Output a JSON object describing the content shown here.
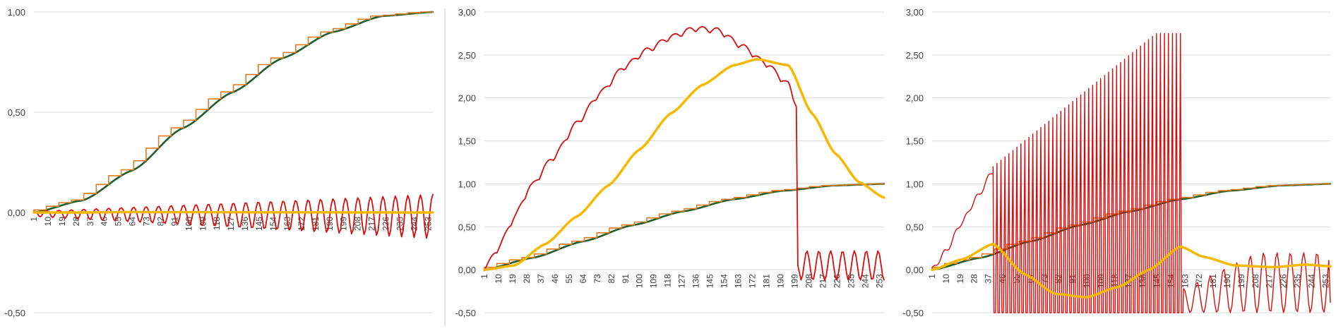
{
  "colors": {
    "green": "#1e5e2a",
    "orange": "#e07b1f",
    "red": "#d80e0e",
    "yellow": "#f7b800",
    "grid": "#d9d9d9",
    "divider": "#c8c8c8",
    "text": "#404040"
  },
  "chart_data": [
    {
      "type": "line",
      "ylim": [
        -0.5,
        1.0
      ],
      "yticks": [
        "1,00",
        "0,50",
        "0,00",
        "-0,50"
      ],
      "xtick_labels": [
        "1",
        "10",
        "19",
        "28",
        "37",
        "46",
        "55",
        "64",
        "73",
        "82",
        "91",
        "100",
        "109",
        "118",
        "127",
        "136",
        "145",
        "154",
        "163",
        "172",
        "181",
        "190",
        "199",
        "208",
        "217",
        "226",
        "235",
        "244",
        "253"
      ],
      "n_points": 256,
      "grid": true,
      "series": [
        {
          "color_key": "green",
          "desc": "smooth S-curve",
          "points": [
            [
              1,
              0
            ],
            [
              32,
              0.06
            ],
            [
              64,
              0.21
            ],
            [
              96,
              0.42
            ],
            [
              128,
              0.6
            ],
            [
              160,
              0.77
            ],
            [
              192,
              0.9
            ],
            [
              224,
              0.98
            ],
            [
              256,
              1.0
            ]
          ]
        },
        {
          "color_key": "orange",
          "desc": "staircase of smooth S-curve",
          "steps": 32,
          "points": [
            [
              1,
              0
            ],
            [
              32,
              0.06
            ],
            [
              64,
              0.21
            ],
            [
              96,
              0.42
            ],
            [
              128,
              0.6
            ],
            [
              160,
              0.77
            ],
            [
              192,
              0.9
            ],
            [
              224,
              0.98
            ],
            [
              256,
              1.0
            ]
          ]
        },
        {
          "color_key": "red",
          "desc": "oscillation",
          "cycles": 32,
          "min_amp_start": -0.02,
          "min_amp_end": -0.13,
          "max_amp_start": 0.005,
          "max_amp_end": 0.09
        },
        {
          "color_key": "yellow",
          "desc": "flat near zero",
          "points": [
            [
              1,
              0
            ],
            [
              30,
              0.0
            ],
            [
              60,
              0.002
            ],
            [
              256,
              0.0
            ]
          ]
        }
      ]
    },
    {
      "type": "line",
      "ylim": [
        -0.5,
        3.0
      ],
      "yticks": [
        "3,00",
        "2,50",
        "2,00",
        "1,50",
        "1,00",
        "0,50",
        "0,00",
        "-0,50"
      ],
      "xtick_labels": [
        "1",
        "10",
        "19",
        "28",
        "37",
        "46",
        "55",
        "64",
        "73",
        "82",
        "91",
        "100",
        "109",
        "118",
        "127",
        "136",
        "145",
        "154",
        "163",
        "172",
        "181",
        "190",
        "199",
        "208",
        "217",
        "226",
        "235",
        "244",
        "253"
      ],
      "n_points": 256,
      "grid": true,
      "series": [
        {
          "color_key": "green",
          "desc": "smooth S-curve",
          "points": [
            [
              1,
              0
            ],
            [
              32,
              0.14
            ],
            [
              64,
              0.33
            ],
            [
              96,
              0.52
            ],
            [
              128,
              0.68
            ],
            [
              160,
              0.82
            ],
            [
              192,
              0.92
            ],
            [
              224,
              0.98
            ],
            [
              256,
              1.0
            ]
          ]
        },
        {
          "color_key": "orange",
          "desc": "staircase of smooth S-curve",
          "steps": 32,
          "points": [
            [
              1,
              0
            ],
            [
              32,
              0.14
            ],
            [
              64,
              0.33
            ],
            [
              96,
              0.52
            ],
            [
              128,
              0.68
            ],
            [
              160,
              0.82
            ],
            [
              192,
              0.92
            ],
            [
              224,
              0.98
            ],
            [
              256,
              1.0
            ]
          ]
        },
        {
          "color_key": "red",
          "desc": "rising scalloped curve then drop and oscillation",
          "points": [
            [
              1,
              0
            ],
            [
              10,
              0.25
            ],
            [
              20,
              0.6
            ],
            [
              30,
              0.95
            ],
            [
              45,
              1.3
            ],
            [
              60,
              1.7
            ],
            [
              75,
              2.05
            ],
            [
              90,
              2.35
            ],
            [
              105,
              2.55
            ],
            [
              120,
              2.7
            ],
            [
              135,
              2.8
            ],
            [
              150,
              2.78
            ],
            [
              165,
              2.6
            ],
            [
              180,
              2.4
            ],
            [
              195,
              2.15
            ],
            [
              200,
              1.9
            ],
            [
              201,
              0.05
            ]
          ],
          "bumps": 22,
          "bump_amp": 0.07,
          "tail": {
            "start": 203,
            "end": 256,
            "cycles": 7,
            "min": -0.12,
            "max": 0.22,
            "end_value": -0.12
          }
        },
        {
          "color_key": "yellow",
          "desc": "bell-like curve",
          "points": [
            [
              1,
              0
            ],
            [
              20,
              0.05
            ],
            [
              40,
              0.3
            ],
            [
              60,
              0.62
            ],
            [
              80,
              0.98
            ],
            [
              100,
              1.4
            ],
            [
              120,
              1.82
            ],
            [
              140,
              2.15
            ],
            [
              160,
              2.38
            ],
            [
              175,
              2.45
            ],
            [
              195,
              2.38
            ],
            [
              210,
              1.82
            ],
            [
              225,
              1.35
            ],
            [
              240,
              1.02
            ],
            [
              256,
              0.84
            ]
          ]
        }
      ]
    },
    {
      "type": "line",
      "ylim": [
        -0.5,
        3.0
      ],
      "yticks": [
        "3,00",
        "2,50",
        "2,00",
        "1,50",
        "1,00",
        "0,50",
        "0,00",
        "-0,50"
      ],
      "xtick_labels": [
        "1",
        "10",
        "19",
        "28",
        "37",
        "46",
        "55",
        "64",
        "73",
        "82",
        "91",
        "100",
        "109",
        "118",
        "127",
        "136",
        "145",
        "154",
        "163",
        "172",
        "181",
        "190",
        "199",
        "208",
        "217",
        "226",
        "235",
        "244",
        "253"
      ],
      "n_points": 256,
      "grid": true,
      "series": [
        {
          "color_key": "green",
          "desc": "smooth S-curve",
          "points": [
            [
              1,
              0
            ],
            [
              32,
              0.14
            ],
            [
              64,
              0.33
            ],
            [
              96,
              0.52
            ],
            [
              128,
              0.68
            ],
            [
              160,
              0.82
            ],
            [
              192,
              0.92
            ],
            [
              224,
              0.98
            ],
            [
              256,
              1.0
            ]
          ]
        },
        {
          "color_key": "orange",
          "desc": "staircase of smooth S-curve",
          "steps": 32,
          "points": [
            [
              1,
              0
            ],
            [
              32,
              0.14
            ],
            [
              64,
              0.33
            ],
            [
              96,
              0.52
            ],
            [
              128,
              0.68
            ],
            [
              160,
              0.82
            ],
            [
              192,
              0.92
            ],
            [
              224,
              0.98
            ],
            [
              256,
              1.0
            ]
          ]
        },
        {
          "color_key": "red",
          "desc": "rise, dense spikes, then oscillating tail",
          "points": [
            [
              1,
              0
            ],
            [
              10,
              0.22
            ],
            [
              20,
              0.55
            ],
            [
              30,
              0.85
            ],
            [
              40,
              1.15
            ]
          ],
          "spikes": {
            "start": 40,
            "end": 160,
            "count": 48,
            "top_start": 1.2,
            "top_end": 2.75,
            "bottom": -0.5
          },
          "tail": {
            "start": 162,
            "end": 256,
            "cycles": 11,
            "min": -0.5,
            "max": 0.2,
            "end_value": -0.38
          }
        },
        {
          "color_key": "yellow",
          "desc": "dip then rise and flat",
          "points": [
            [
              1,
              0
            ],
            [
              20,
              0.12
            ],
            [
              40,
              0.3
            ],
            [
              60,
              -0.05
            ],
            [
              80,
              -0.28
            ],
            [
              100,
              -0.32
            ],
            [
              120,
              -0.2
            ],
            [
              140,
              0.0
            ],
            [
              160,
              0.27
            ],
            [
              175,
              0.15
            ],
            [
              195,
              0.05
            ],
            [
              220,
              0.03
            ],
            [
              240,
              0.06
            ],
            [
              256,
              0.04
            ]
          ]
        }
      ]
    }
  ]
}
